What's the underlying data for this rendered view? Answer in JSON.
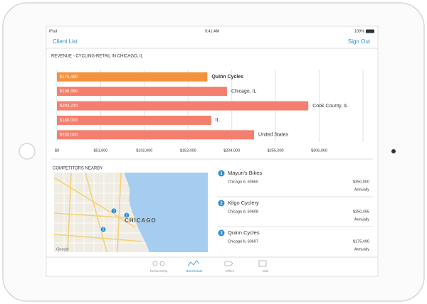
{
  "status_bar": {
    "device": "iPad",
    "time": "9:41 AM",
    "battery": "100%"
  },
  "nav": {
    "back": "Client List",
    "action": "Sign Out"
  },
  "chart_data": {
    "type": "bar",
    "orientation": "horizontal",
    "title": "REVENUE - CYCLING-RETAIL IN CHICAGO, IL",
    "categories": [
      "Quinn Cycles",
      "Chicago, IL",
      "Cook County, IL",
      "IL",
      "United States"
    ],
    "values": [
      175490,
      198390,
      293230,
      180000,
      230000
    ],
    "value_labels": [
      "$175,490",
      "$198,390",
      "$293,230",
      "$180,000",
      "$230,000"
    ],
    "colors": [
      "#f5923e",
      "#f47f6e",
      "#f47f6e",
      "#f47f6e",
      "#f47f6e"
    ],
    "xlim": [
      0,
      357000
    ],
    "xticks": [
      {
        "value": 0,
        "label": "$0"
      },
      {
        "value": 51000,
        "label": "$51,000"
      },
      {
        "value": 102000,
        "label": "$102,000"
      },
      {
        "value": 153000,
        "label": "$153,000"
      },
      {
        "value": 204000,
        "label": "$204,000"
      },
      {
        "value": 255000,
        "label": "$255,000"
      },
      {
        "value": 306000,
        "label": "$306,000"
      }
    ],
    "grid": true
  },
  "competitors": {
    "title": "COMPETITORS NEARBY",
    "items": [
      {
        "number": "1",
        "name": "Mayuri's Bikes",
        "address": "Chicago IL 60660",
        "amount": "$350,000",
        "period": "Annually"
      },
      {
        "number": "2",
        "name": "Kilgo Cyclery",
        "address": "Chicago IL 60608",
        "amount": "$250,455",
        "period": "Annually"
      },
      {
        "number": "3",
        "name": "Quinn Cycles",
        "address": "Chicago IL 60607",
        "amount": "$175,490",
        "period": "Annually"
      }
    ]
  },
  "map": {
    "city_label": "CHICAGO",
    "attribution": "Google"
  },
  "tabs": [
    "Relationship",
    "Benchmark",
    "Offers",
    "Mail"
  ]
}
